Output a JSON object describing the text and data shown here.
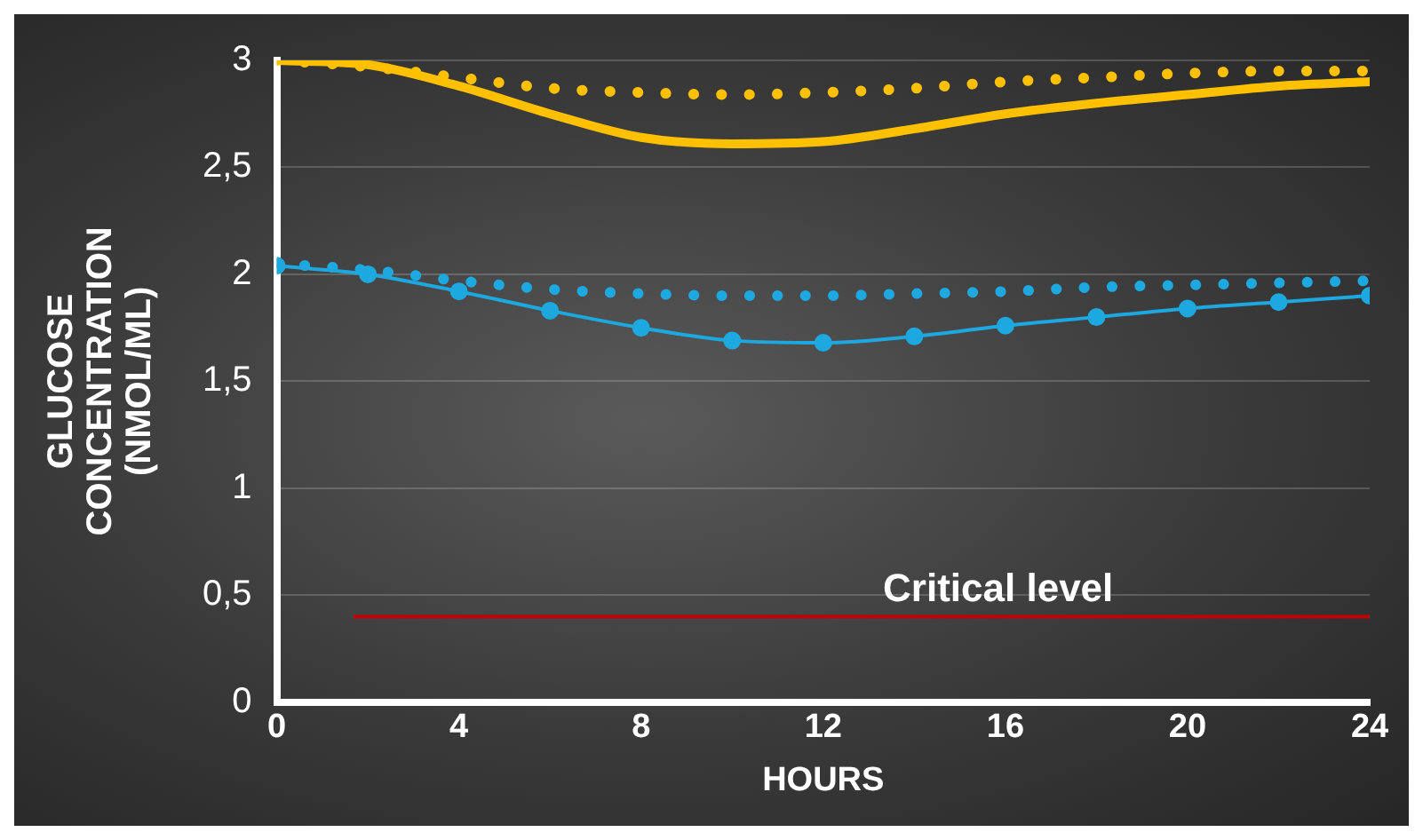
{
  "chart_data": {
    "type": "line",
    "xlabel": "HOURS",
    "ylabel": "GLUCOSE CONCENTRATION (NMOL/ML)",
    "x": [
      0,
      2,
      4,
      6,
      8,
      10,
      12,
      14,
      16,
      18,
      20,
      22,
      24
    ],
    "series": [
      {
        "color": "#ffc000",
        "line_style": "solid",
        "values": [
          3,
          2.98,
          2.88,
          2.75,
          2.64,
          2.61,
          2.62,
          2.68,
          2.75,
          2.8,
          2.84,
          2.88,
          2.9
        ]
      },
      {
        "color": "#ffc000",
        "line_style": "dotted",
        "values": [
          3,
          2.97,
          2.92,
          2.87,
          2.85,
          2.84,
          2.85,
          2.87,
          2.9,
          2.92,
          2.94,
          2.95,
          2.95
        ]
      },
      {
        "color": "#1ea8e0",
        "line_style": "solid",
        "marker": "circle",
        "values": [
          2.04,
          2.0,
          1.92,
          1.83,
          1.75,
          1.69,
          1.68,
          1.71,
          1.76,
          1.8,
          1.84,
          1.87,
          1.9
        ]
      },
      {
        "color": "#1ea8e0",
        "line_style": "dotted",
        "values": [
          2.05,
          2.02,
          1.97,
          1.93,
          1.91,
          1.9,
          1.9,
          1.91,
          1.92,
          1.94,
          1.95,
          1.96,
          1.97
        ]
      }
    ],
    "xlim": [
      0,
      24
    ],
    "xticks": [
      0,
      4,
      8,
      12,
      16,
      20,
      24
    ],
    "ylim": [
      0,
      3
    ],
    "yticks": [
      0,
      {
        "value": 0.5,
        "label": "0,5"
      },
      1,
      {
        "value": 1.5,
        "label": "1,5"
      },
      2,
      {
        "value": 2.5,
        "label": "2,5"
      },
      3
    ],
    "ref_lines": [
      {
        "axis": "y",
        "value": 0.4,
        "label": "Critical level",
        "color": "#c00000"
      }
    ],
    "grid": "y",
    "legend": false
  }
}
